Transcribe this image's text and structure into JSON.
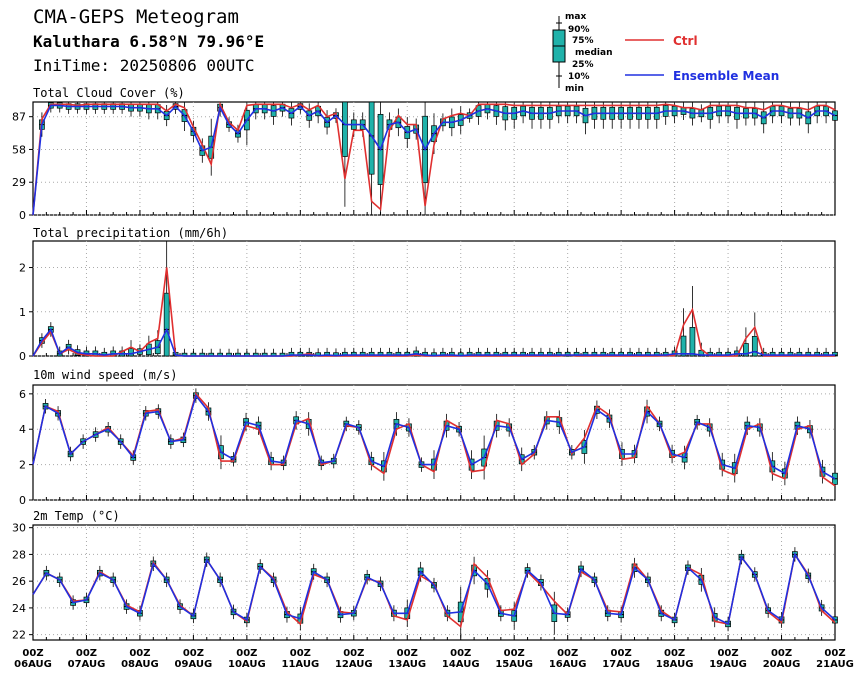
{
  "header": {
    "title": "CMA-GEPS Meteogram",
    "location": "Kaluthara 6.58°N 79.96°E",
    "init_time": "IniTime: 20250806 00UTC"
  },
  "legend": {
    "box_labels": [
      "max",
      "90%",
      "75%",
      "median",
      "25%",
      "10%",
      "min"
    ],
    "ctrl_label": "Ctrl",
    "mean_label": "Ensemble Mean",
    "ctrl_color": "#e03030",
    "mean_color": "#2030e0",
    "box_color": "#20b2aa"
  },
  "x_axis": {
    "day_labels": [
      [
        "00Z",
        "06AUG"
      ],
      [
        "00Z",
        "07AUG"
      ],
      [
        "00Z",
        "08AUG"
      ],
      [
        "00Z",
        "09AUG"
      ],
      [
        "00Z",
        "10AUG"
      ],
      [
        "00Z",
        "11AUG"
      ],
      [
        "00Z",
        "12AUG"
      ],
      [
        "00Z",
        "13AUG"
      ],
      [
        "00Z",
        "14AUG"
      ],
      [
        "00Z",
        "15AUG"
      ],
      [
        "00Z",
        "16AUG"
      ],
      [
        "00Z",
        "17AUG"
      ],
      [
        "00Z",
        "18AUG"
      ],
      [
        "00Z",
        "19AUG"
      ],
      [
        "00Z",
        "20AUG"
      ],
      [
        "00Z",
        "21AUG"
      ]
    ],
    "step_hours": 6
  },
  "chart_data": [
    {
      "type": "line",
      "title": "Total Cloud Cover (%)",
      "ylim": [
        0,
        100
      ],
      "yticks": [
        0,
        29,
        58,
        87
      ],
      "ctrl": [
        0,
        85,
        98,
        98,
        98,
        97,
        98,
        98,
        98,
        98,
        98,
        98,
        98,
        98,
        98,
        92,
        98,
        95,
        78,
        62,
        45,
        98,
        82,
        75,
        97,
        98,
        98,
        98,
        98,
        95,
        98,
        93,
        97,
        87,
        90,
        32,
        75,
        75,
        12,
        5,
        75,
        88,
        80,
        80,
        8,
        62,
        85,
        88,
        90,
        88,
        98,
        98,
        98,
        98,
        97,
        97,
        97,
        97,
        97,
        97,
        97,
        97,
        97,
        97,
        97,
        97,
        97,
        97,
        97,
        97,
        97,
        98,
        97,
        95,
        95,
        93,
        97,
        97,
        97,
        97,
        95,
        95,
        93,
        97,
        97,
        95,
        95,
        93,
        97,
        97,
        93
      ],
      "mean": [
        0,
        80,
        97,
        97,
        96,
        96,
        96,
        96,
        96,
        96,
        96,
        95,
        95,
        94,
        94,
        88,
        96,
        88,
        74,
        57,
        60,
        95,
        80,
        72,
        84,
        94,
        94,
        92,
        95,
        90,
        96,
        88,
        92,
        82,
        88,
        80,
        80,
        80,
        70,
        58,
        80,
        82,
        73,
        76,
        58,
        72,
        82,
        82,
        84,
        88,
        92,
        94,
        92,
        90,
        90,
        92,
        90,
        90,
        90,
        92,
        92,
        92,
        88,
        90,
        90,
        90,
        90,
        90,
        90,
        90,
        90,
        92,
        92,
        92,
        90,
        90,
        90,
        92,
        92,
        90,
        90,
        90,
        86,
        92,
        92,
        90,
        90,
        86,
        92,
        92,
        88
      ]
    },
    {
      "type": "line",
      "title": "Total precipitation (mm/6h)",
      "ylim": [
        0,
        2.6
      ],
      "yticks": [
        0,
        1,
        2
      ],
      "ctrl": [
        0,
        0.3,
        0.55,
        0.05,
        0.15,
        0.05,
        0.02,
        0,
        0,
        0,
        0.1,
        0.2,
        0.1,
        0.3,
        0.4,
        2.0,
        0.02,
        0,
        0,
        0,
        0,
        0,
        0,
        0,
        0,
        0,
        0,
        0,
        0,
        0,
        0.02,
        0.05,
        0,
        0,
        0,
        0,
        0,
        0,
        0,
        0,
        0,
        0,
        0,
        0.02,
        0,
        0,
        0,
        0,
        0,
        0,
        0,
        0,
        0,
        0,
        0,
        0,
        0,
        0,
        0,
        0,
        0.02,
        0,
        0,
        0,
        0,
        0,
        0,
        0,
        0,
        0,
        0,
        0.01,
        0.01,
        0.7,
        1.05,
        0.15,
        0,
        0,
        0,
        0,
        0.4,
        0.65,
        0,
        0,
        0,
        0,
        0,
        0,
        0,
        0,
        0
      ],
      "mean": [
        0,
        0.35,
        0.6,
        0.05,
        0.2,
        0.08,
        0.05,
        0.05,
        0.02,
        0.05,
        0.05,
        0.05,
        0.1,
        0.15,
        0.2,
        0.6,
        0.02,
        0,
        0,
        0,
        0,
        0,
        0,
        0,
        0,
        0,
        0,
        0,
        0,
        0.02,
        0.02,
        0.02,
        0.01,
        0.02,
        0.01,
        0.02,
        0.02,
        0.02,
        0.02,
        0.02,
        0.02,
        0.02,
        0.02,
        0.05,
        0.02,
        0.01,
        0.02,
        0.02,
        0.01,
        0.02,
        0.02,
        0.02,
        0.02,
        0.02,
        0.02,
        0.02,
        0.02,
        0.02,
        0.02,
        0.02,
        0.02,
        0.02,
        0.02,
        0.02,
        0.02,
        0.02,
        0.02,
        0.02,
        0.02,
        0.02,
        0.02,
        0.02,
        0.05,
        0.05,
        0.05,
        0.02,
        0.02,
        0.02,
        0.02,
        0.05,
        0.05,
        0.1,
        0.02,
        0.02,
        0.02,
        0.02,
        0.02,
        0.02,
        0.02,
        0.02,
        0.02
      ]
    },
    {
      "type": "line",
      "title": "10m wind speed (m/s)",
      "ylim": [
        0,
        6.5
      ],
      "yticks": [
        0,
        2,
        4,
        6
      ],
      "ctrl": [
        2,
        5.3,
        5,
        2.6,
        3.3,
        3.7,
        4.1,
        3.3,
        2.5,
        5,
        5.1,
        3.3,
        3.5,
        6,
        5.2,
        2.2,
        2.2,
        4.2,
        4,
        2,
        2,
        4.3,
        4.6,
        2,
        2.2,
        4.2,
        4.1,
        2,
        1.5,
        4,
        4.3,
        2,
        1.6,
        4.5,
        4.1,
        1.6,
        1.7,
        4.5,
        4.3,
        2,
        2.6,
        4.7,
        4.7,
        2.6,
        3.5,
        5.3,
        4.8,
        2.3,
        2.4,
        5.3,
        4.3,
        2.4,
        2.7,
        4.3,
        4.3,
        1.7,
        1.4,
        4,
        4.3,
        1.5,
        1.2,
        4,
        4.2,
        1.3,
        0.8
      ],
      "mean": [
        2,
        5.3,
        4.9,
        2.6,
        3.3,
        3.7,
        4,
        3.3,
        2.4,
        4.9,
        5,
        3.3,
        3.4,
        5.9,
        5,
        2.7,
        2.3,
        4.4,
        4.2,
        2.2,
        2.1,
        4.5,
        4.3,
        2.1,
        2.2,
        4.3,
        4.1,
        2.2,
        1.9,
        4.3,
        4.1,
        2,
        2,
        4.2,
        4,
        2,
        2.4,
        4.2,
        4.1,
        2.3,
        2.7,
        4.5,
        4.4,
        2.7,
        3,
        5.1,
        4.6,
        2.6,
        2.6,
        5,
        4.3,
        2.6,
        2.4,
        4.4,
        4.1,
        2,
        1.8,
        4.2,
        4.1,
        1.9,
        1.5,
        4.2,
        4,
        1.6,
        1.2
      ]
    },
    {
      "type": "line",
      "title": "2m Temp (°C)",
      "ylim": [
        21.6,
        30.2
      ],
      "yticks": [
        22,
        24,
        26,
        28,
        30
      ],
      "ctrl": [
        25,
        26.6,
        26.1,
        24.5,
        24.6,
        26.7,
        26.1,
        24.2,
        23.7,
        27.4,
        26.1,
        24.2,
        23.4,
        27.6,
        26.1,
        23.7,
        23,
        27.1,
        26.2,
        23.7,
        22.8,
        26.5,
        26.1,
        23.7,
        23.6,
        26.2,
        25.9,
        23.4,
        23.1,
        26.4,
        25.8,
        23.4,
        22.6,
        27.3,
        26.3,
        23.8,
        23.9,
        26.7,
        25.7,
        24.5,
        23.5,
        26.7,
        26.1,
        23.8,
        23.7,
        27.3,
        26.1,
        23.8,
        23.1,
        27,
        26.5,
        23,
        22.8,
        27.8,
        26.5,
        23.7,
        22.9,
        28,
        26.5,
        23.8,
        22.9
      ],
      "mean": [
        25,
        26.6,
        26.1,
        24.4,
        24.6,
        26.6,
        26.1,
        24.1,
        23.6,
        27.3,
        26.1,
        24.1,
        23.4,
        27.6,
        26.1,
        23.7,
        23.1,
        27.1,
        26.1,
        23.5,
        23.2,
        26.7,
        26.1,
        23.5,
        23.6,
        26.3,
        25.8,
        23.6,
        23.6,
        26.7,
        25.7,
        23.6,
        23.7,
        26.8,
        25.8,
        23.6,
        23.4,
        26.8,
        25.9,
        23.6,
        23.5,
        26.9,
        26.1,
        23.6,
        23.5,
        27,
        26.1,
        23.6,
        23.1,
        27,
        26.1,
        23.3,
        22.8,
        27.8,
        26.5,
        23.8,
        23.1,
        28,
        26.4,
        24,
        23.1
      ]
    }
  ]
}
